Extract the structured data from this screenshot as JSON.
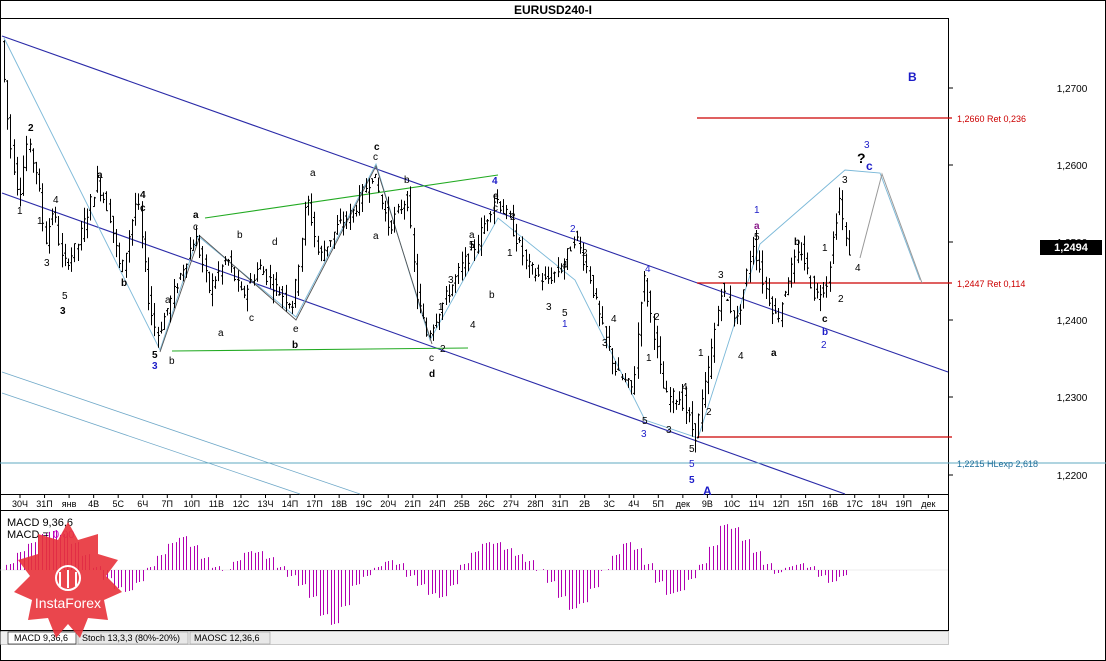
{
  "window": {
    "title": "EURUSD240-I"
  },
  "colors": {
    "bull_wave": "#1c1cc8",
    "wave_black": "#000000",
    "fib_red": "#cc0000",
    "channel": "#2a2aa8",
    "trend_green": "#22aa22",
    "thin_blue": "#6fa8c8",
    "macd_up": "#b000b0",
    "logo_red": "#e8323a"
  },
  "price_axis": {
    "ticks": [
      "1,2700",
      "1,2600",
      "1,2500",
      "1,2400",
      "1,2300",
      "1,2200"
    ],
    "current_price": "1,2494"
  },
  "time_axis": {
    "labels": [
      "30Ч",
      "31П",
      "янв",
      "4В",
      "5С",
      "6Ч",
      "7П",
      "10П",
      "11В",
      "12С",
      "13Ч",
      "14П",
      "17П",
      "18В",
      "19С",
      "20Ч",
      "21П",
      "24П",
      "25В",
      "26С",
      "27Ч",
      "28П",
      "31П",
      "2В",
      "3С",
      "4Ч",
      "5П",
      "дек",
      "9В",
      "10С",
      "11Ч",
      "12П",
      "15П",
      "16В",
      "17С",
      "18Ч",
      "19П",
      "дек"
    ]
  },
  "levels": {
    "ret_0236": "1,2660 Ret 0,236",
    "ret_0114": "1,2447 Ret 0,114",
    "hlexp": "1,2215 HLexp 2,618"
  },
  "wave_labels": {
    "top_B": "B",
    "bottom_A": "A",
    "bottom_5": "5",
    "q_mark": "?",
    "c_blue": "c",
    "three_blue": "3"
  },
  "indicator": {
    "macd_name": "MACD 9,36,6",
    "macd_line": "MACD = ",
    "macd_value": "0,00"
  },
  "tabs": [
    {
      "label": "MACD 9,36,6"
    },
    {
      "label": "Stoch 13,3,3 (80%-20%)"
    },
    {
      "label": "MAOSC 12,36,6"
    }
  ],
  "logo": {
    "text": "InstaForex"
  },
  "chart_data": {
    "type": "candlestick",
    "title": "EURUSD240-I",
    "ylim": [
      1.2165,
      1.2775
    ],
    "annotations": [
      "1,2660 Ret 0,236",
      "1,2447 Ret 0,114",
      "1,2215 HLexp 2,618"
    ],
    "macd_histogram": {
      "values": [
        0.2,
        0.6,
        0.9,
        1.2,
        1.3,
        1.2,
        0.9,
        0.5,
        0.1,
        -0.3,
        -0.6,
        -0.7,
        -0.4,
        0.1,
        0.5,
        0.9,
        1.1,
        0.8,
        0.4,
        0.1,
        0.0,
        0.3,
        0.6,
        0.6,
        0.4,
        0.1,
        -0.2,
        -0.5,
        -0.9,
        -1.5,
        -1.8,
        -1.2,
        -0.5,
        -0.2,
        0.1,
        0.3,
        0.2,
        -0.2,
        -0.5,
        -0.8,
        -0.9,
        -0.5,
        0.2,
        0.6,
        0.9,
        0.9,
        0.7,
        0.5,
        0.3,
        0.0,
        -0.4,
        -0.9,
        -1.3,
        -1.1,
        -0.6,
        0.0,
        0.5,
        0.9,
        0.7,
        0.2,
        -0.4,
        -0.8,
        -0.7,
        -0.3,
        0.2,
        0.8,
        1.5,
        1.4,
        1.0,
        0.6,
        0.2,
        -0.1,
        0.1,
        0.2,
        0.1,
        -0.2,
        -0.4,
        -0.2
      ]
    }
  }
}
